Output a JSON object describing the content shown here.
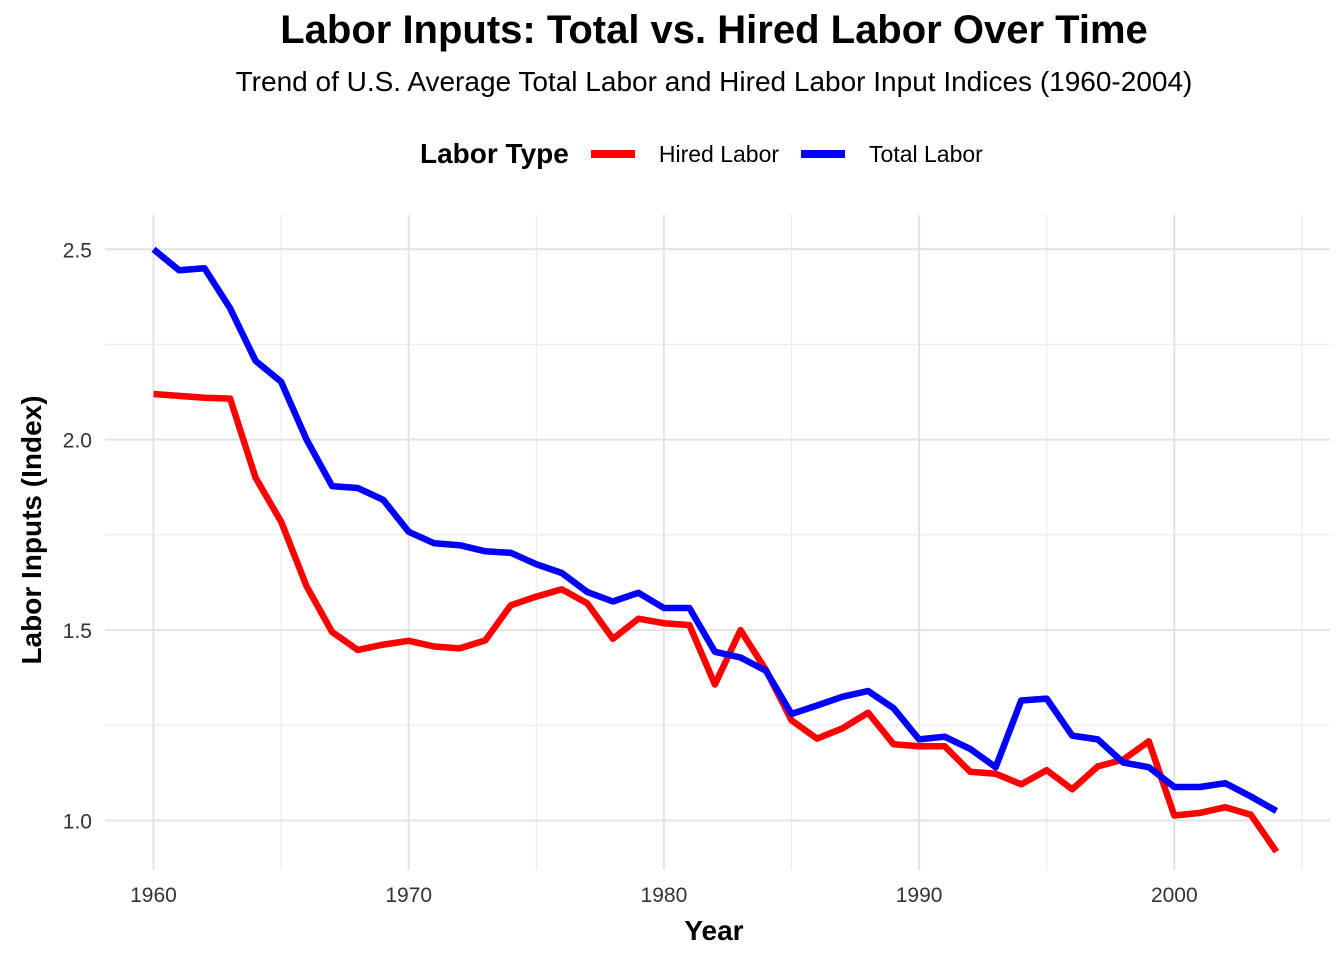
{
  "chart_data": {
    "type": "line",
    "title": "Labor Inputs: Total vs. Hired Labor Over Time",
    "subtitle": "Trend of U.S. Average Total Labor and Hired Labor Input Indices (1960-2004)",
    "xlabel": "Year",
    "ylabel": "Labor Inputs (Index)",
    "xlim": [
      1958.1,
      2006.1
    ],
    "ylim": [
      0.87,
      2.59
    ],
    "x_ticks": [
      1960,
      1970,
      1980,
      1990,
      2000
    ],
    "y_ticks": [
      1.0,
      1.5,
      2.0,
      2.5
    ],
    "y_tick_labels": [
      "1.0",
      "1.5",
      "2.0",
      "2.5"
    ],
    "grid": true,
    "legend": {
      "title": "Labor Type",
      "placement": "top"
    },
    "x": [
      1960,
      1961,
      1962,
      1963,
      1964,
      1965,
      1966,
      1967,
      1968,
      1969,
      1970,
      1971,
      1972,
      1973,
      1974,
      1975,
      1976,
      1977,
      1978,
      1979,
      1980,
      1981,
      1982,
      1983,
      1984,
      1985,
      1986,
      1987,
      1988,
      1989,
      1990,
      1991,
      1992,
      1993,
      1994,
      1995,
      1996,
      1997,
      1998,
      1999,
      2000,
      2001,
      2002,
      2003,
      2004
    ],
    "series": [
      {
        "name": "Hired Labor",
        "color": "#ff0000",
        "values": [
          2.12,
          2.115,
          2.11,
          2.108,
          1.9,
          1.785,
          1.615,
          1.495,
          1.448,
          1.462,
          1.472,
          1.457,
          1.452,
          1.473,
          1.565,
          1.588,
          1.607,
          1.57,
          1.477,
          1.53,
          1.518,
          1.513,
          1.357,
          1.5,
          1.395,
          1.263,
          1.215,
          1.242,
          1.283,
          1.2,
          1.195,
          1.195,
          1.128,
          1.123,
          1.095,
          1.132,
          1.082,
          1.142,
          1.16,
          1.208,
          1.013,
          1.02,
          1.035,
          1.015,
          0.918
        ]
      },
      {
        "name": "Total Labor",
        "color": "#0000ff",
        "values": [
          2.5,
          2.445,
          2.45,
          2.345,
          2.207,
          2.152,
          2.0,
          1.878,
          1.873,
          1.842,
          1.758,
          1.728,
          1.723,
          1.707,
          1.703,
          1.673,
          1.65,
          1.6,
          1.575,
          1.598,
          1.558,
          1.558,
          1.443,
          1.428,
          1.393,
          1.28,
          1.302,
          1.325,
          1.34,
          1.295,
          1.213,
          1.22,
          1.188,
          1.14,
          1.315,
          1.32,
          1.223,
          1.213,
          1.152,
          1.14,
          1.088,
          1.088,
          1.098,
          1.063,
          1.025
        ]
      }
    ]
  }
}
